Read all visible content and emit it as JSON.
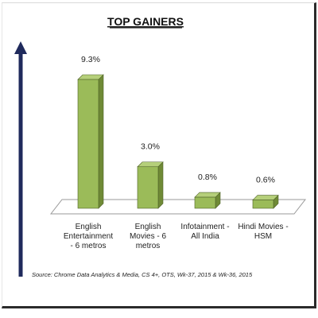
{
  "chart_data": {
    "type": "bar",
    "title": "TOP GAINERS",
    "categories": [
      [
        "English",
        "Entertainment",
        "- 6 metros"
      ],
      [
        "English",
        "Movies - 6",
        "metros"
      ],
      [
        "Infotainment -",
        "All India"
      ],
      [
        "Hindi Movies -",
        "HSM"
      ]
    ],
    "values": [
      9.3,
      3.0,
      0.8,
      0.6
    ],
    "value_labels": [
      "9.3%",
      "3.0%",
      "0.8%",
      "0.6%"
    ],
    "ylim": [
      0,
      9.3
    ],
    "grid": false,
    "legend": "none",
    "source": "Source: Chrome Data Analytics & Media, CS 4+, OTS, Wk-37, 2015 & Wk-36, 2015"
  },
  "colors": {
    "bar_front": "#9bbb59",
    "bar_side": "#6f8a36",
    "bar_top": "#b5cf7a",
    "bar_outline": "#4f6228",
    "floor": "#ffffff",
    "arrow": "#1f2a5c"
  }
}
